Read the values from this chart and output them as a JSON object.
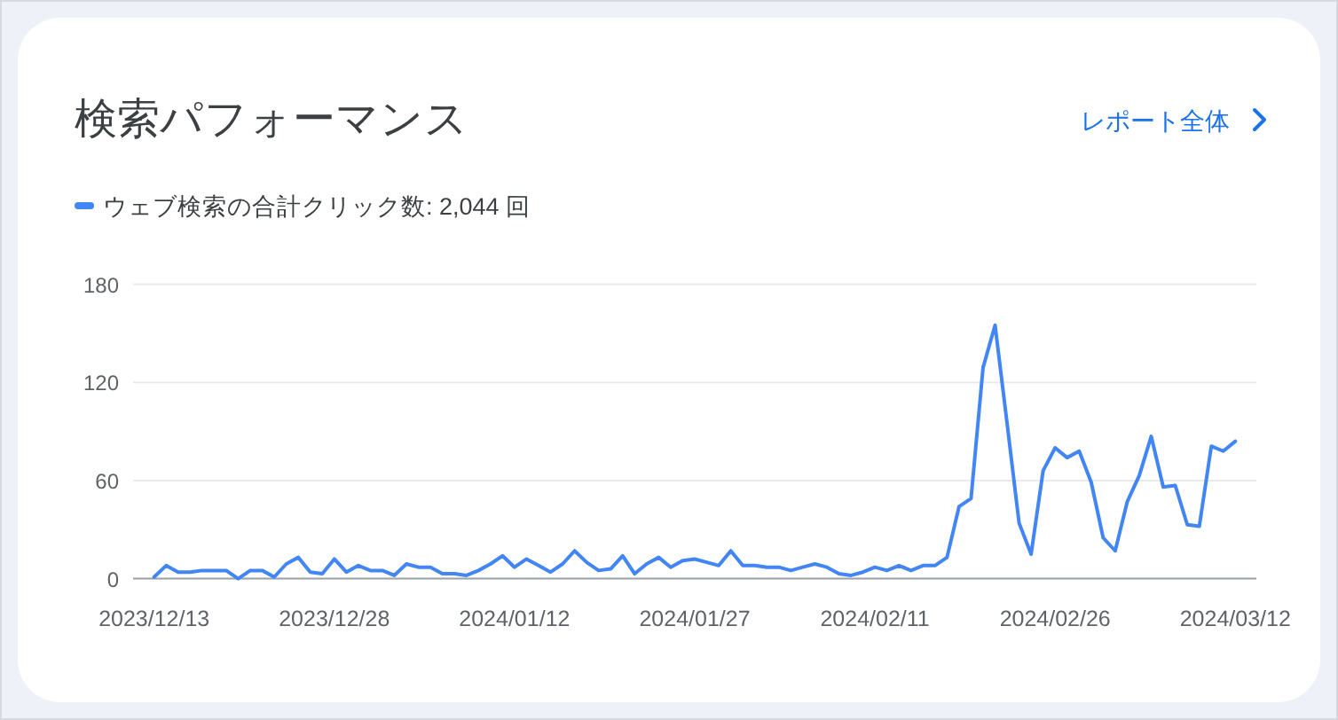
{
  "chart_data": {
    "type": "line",
    "title": "検索パフォーマンス",
    "annotations": [
      "レポート全体"
    ],
    "legend": "top left",
    "grid": "y",
    "x": [
      "2023-12-13",
      "2023-12-14",
      "2023-12-15",
      "2023-12-16",
      "2023-12-17",
      "2023-12-18",
      "2023-12-19",
      "2023-12-20",
      "2023-12-21",
      "2023-12-22",
      "2023-12-23",
      "2023-12-24",
      "2023-12-25",
      "2023-12-26",
      "2023-12-27",
      "2023-12-28",
      "2023-12-29",
      "2023-12-30",
      "2023-12-31",
      "2024-01-01",
      "2024-01-02",
      "2024-01-03",
      "2024-01-04",
      "2024-01-05",
      "2024-01-06",
      "2024-01-07",
      "2024-01-08",
      "2024-01-09",
      "2024-01-10",
      "2024-01-11",
      "2024-01-12",
      "2024-01-13",
      "2024-01-14",
      "2024-01-15",
      "2024-01-16",
      "2024-01-17",
      "2024-01-18",
      "2024-01-19",
      "2024-01-20",
      "2024-01-21",
      "2024-01-22",
      "2024-01-23",
      "2024-01-24",
      "2024-01-25",
      "2024-01-26",
      "2024-01-27",
      "2024-01-28",
      "2024-01-29",
      "2024-01-30",
      "2024-01-31",
      "2024-02-01",
      "2024-02-02",
      "2024-02-03",
      "2024-02-04",
      "2024-02-05",
      "2024-02-06",
      "2024-02-07",
      "2024-02-08",
      "2024-02-09",
      "2024-02-10",
      "2024-02-11",
      "2024-02-12",
      "2024-02-13",
      "2024-02-14",
      "2024-02-15",
      "2024-02-16",
      "2024-02-17",
      "2024-02-18",
      "2024-02-19",
      "2024-02-20",
      "2024-02-21",
      "2024-02-22",
      "2024-02-23",
      "2024-02-24",
      "2024-02-25",
      "2024-02-26",
      "2024-02-27",
      "2024-02-28",
      "2024-02-29",
      "2024-03-01",
      "2024-03-02",
      "2024-03-03",
      "2024-03-04",
      "2024-03-05",
      "2024-03-06",
      "2024-03-07",
      "2024-03-08",
      "2024-03-09",
      "2024-03-10",
      "2024-03-11",
      "2024-03-12"
    ],
    "series": [
      {
        "name": "ウェブ検索の合計クリック数: 2,044 回",
        "color": "#4285f4",
        "values": [
          1,
          8,
          4,
          4,
          5,
          5,
          5,
          0,
          5,
          5,
          1,
          9,
          13,
          4,
          3,
          12,
          4,
          8,
          5,
          5,
          2,
          9,
          7,
          7,
          3,
          3,
          2,
          5,
          9,
          14,
          7,
          12,
          8,
          4,
          9,
          17,
          10,
          5,
          6,
          14,
          3,
          9,
          13,
          7,
          11,
          12,
          10,
          8,
          17,
          8,
          8,
          7,
          7,
          5,
          7,
          9,
          7,
          3,
          2,
          4,
          7,
          5,
          8,
          5,
          8,
          8,
          13,
          44,
          49,
          129,
          155,
          95,
          34,
          15,
          66,
          80,
          74,
          78,
          59,
          25,
          17,
          47,
          63,
          87,
          56,
          57,
          33,
          32,
          81,
          78,
          84
        ]
      }
    ],
    "xlim": [
      "2023-12-11T06:00",
      "2024-03-13T18:00"
    ],
    "xticks": [
      {
        "value": "2023-12-13",
        "label": "2023/12/13"
      },
      {
        "value": "2023-12-28",
        "label": "2023/12/28"
      },
      {
        "value": "2024-01-12",
        "label": "2024/01/12"
      },
      {
        "value": "2024-01-27",
        "label": "2024/01/27"
      },
      {
        "value": "2024-02-11",
        "label": "2024/02/11"
      },
      {
        "value": "2024-02-26",
        "label": "2024/02/26"
      },
      {
        "value": "2024-03-12",
        "label": "2024/03/12"
      }
    ],
    "ylim": [
      0,
      180
    ],
    "yticks": [
      0,
      60,
      120,
      180
    ]
  }
}
